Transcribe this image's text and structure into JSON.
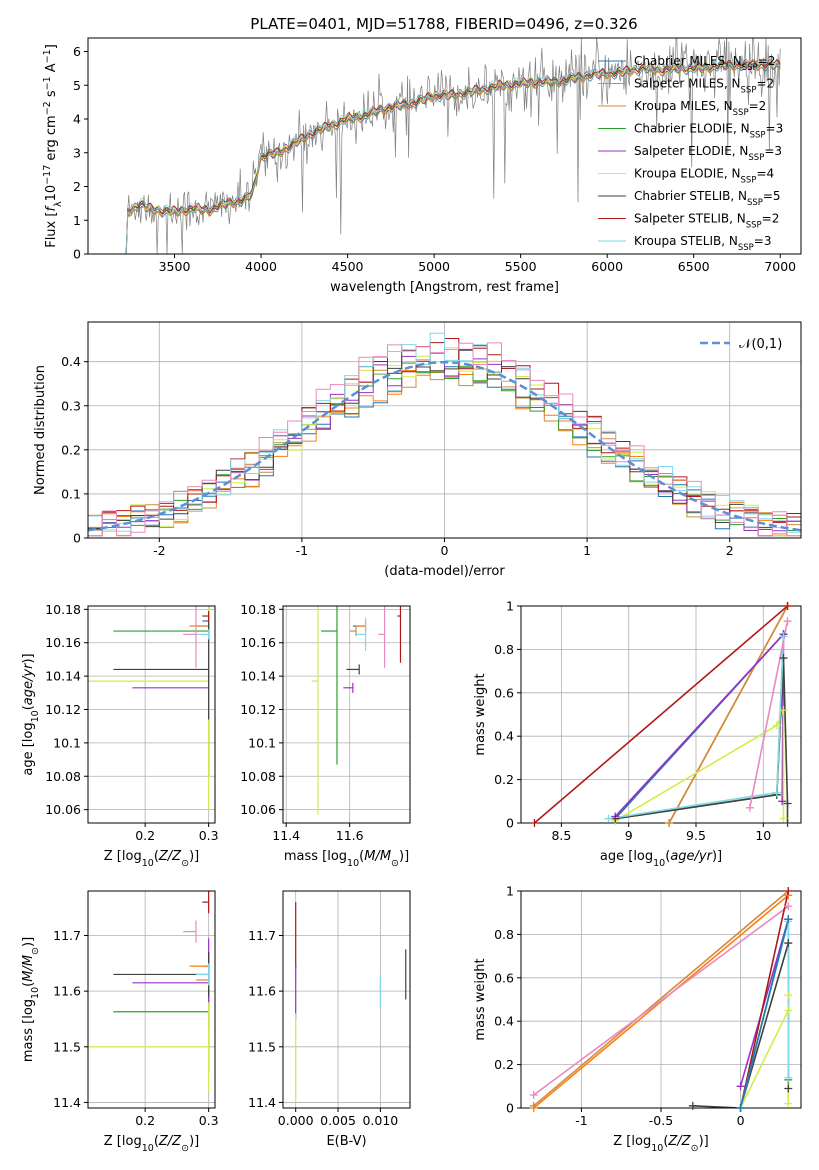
{
  "figure_title": "PLATE=0401, MJD=51788, FIBERID=0496, z=0.326",
  "series_colors": {
    "Chabrier MILES": "#1f77b4",
    "Salpeter MILES": "#ff7f0e",
    "Kroupa MILES": "#d08a3e",
    "Chabrier ELODIE": "#2ca02c",
    "Salpeter ELODIE": "#9b30c8",
    "Kroupa ELODIE": "#d4ec4a",
    "Chabrier STELIB": "#404040",
    "Salpeter STELIB": "#b01818",
    "Kroupa STELIB": "#80d8e8",
    "data_spectrum": "#808080",
    "normal_curve": "#5b8fd6",
    "hist_extra": "#e88ac0"
  },
  "chart_data": [
    {
      "id": "spectrum",
      "type": "line",
      "xlabel": "wavelength [Angstrom, rest frame]",
      "ylabel": "Flux [f_λ 10^-17 erg cm^-2 s^-1 A^-1]",
      "xlim": [
        3000,
        7120
      ],
      "ylim": [
        0,
        6.4
      ],
      "xticks": [
        3500,
        4000,
        4500,
        5000,
        5500,
        6000,
        6500,
        7000
      ],
      "yticks": [
        0,
        1,
        2,
        3,
        4,
        5,
        6
      ],
      "grid": false,
      "legend_position": "top-right",
      "legend": [
        {
          "base": "Chabrier MILES, N",
          "sub": "SSP",
          "val": "=2"
        },
        {
          "base": "Salpeter MILES, N",
          "sub": "SSP",
          "val": "=2"
        },
        {
          "base": "Kroupa MILES, N",
          "sub": "SSP",
          "val": "=2"
        },
        {
          "base": "Chabrier ELODIE, N",
          "sub": "SSP",
          "val": "=3"
        },
        {
          "base": "Salpeter ELODIE, N",
          "sub": "SSP",
          "val": "=3"
        },
        {
          "base": "Kroupa ELODIE, N",
          "sub": "SSP",
          "val": "=4"
        },
        {
          "base": "Chabrier STELIB, N",
          "sub": "SSP",
          "val": "=5"
        },
        {
          "base": "Salpeter STELIB, N",
          "sub": "SSP",
          "val": "=2"
        },
        {
          "base": "Kroupa STELIB, N",
          "sub": "SSP",
          "val": "=3"
        }
      ],
      "model_continuum": {
        "x": [
          3210,
          3225,
          3300,
          3350,
          3400,
          3500,
          3600,
          3700,
          3800,
          3900,
          3950,
          4000,
          4100,
          4200,
          4300,
          4400,
          4500,
          4600,
          4700,
          4800,
          4900,
          5000,
          5100,
          5200,
          5300,
          5400,
          5500,
          5600,
          5700,
          5800,
          5900,
          6000,
          6100,
          6200,
          6300,
          6400,
          6500,
          6600,
          6700,
          6800,
          6900,
          7000
        ],
        "y": [
          0.0,
          1.2,
          1.5,
          1.35,
          1.3,
          1.25,
          1.35,
          1.3,
          1.5,
          1.6,
          1.8,
          2.9,
          3.0,
          3.3,
          3.6,
          3.8,
          4.0,
          4.1,
          4.3,
          4.4,
          4.5,
          4.7,
          4.7,
          4.8,
          4.9,
          5.0,
          5.05,
          5.1,
          5.1,
          5.2,
          5.3,
          5.35,
          5.4,
          5.5,
          5.45,
          5.5,
          5.5,
          5.55,
          5.6,
          5.6,
          5.6,
          5.6
        ]
      },
      "data_spectrum": {
        "x_range": [
          3210,
          7000
        ],
        "noise_sigma": 0.45,
        "points": 600
      }
    },
    {
      "id": "residuals",
      "type": "bar",
      "xlabel": "(data-model)/error",
      "ylabel": "Normed distribution",
      "xlim": [
        -2.5,
        2.5
      ],
      "ylim": [
        0,
        0.49
      ],
      "xticks": [
        -2,
        -1,
        0,
        1,
        2
      ],
      "yticks": [
        0.0,
        0.1,
        0.2,
        0.3,
        0.4
      ],
      "grid": true,
      "legend_position": "top-right",
      "legend": [
        "𝒩(0,1)"
      ],
      "bin_width": 0.1,
      "reference_curve": "normal(0,1)"
    },
    {
      "id": "age-vs-Z",
      "type": "scatter",
      "xlabel": "Z [log10(Z/Z⊙)]",
      "ylabel": "age  [log10(age/yr)]",
      "xlim": [
        0.11,
        0.31
      ],
      "ylim": [
        10.052,
        10.182
      ],
      "xticks": [
        0.2,
        0.3
      ],
      "yticks": [
        10.06,
        10.08,
        10.1,
        10.12,
        10.14,
        10.16,
        10.18
      ],
      "grid": true,
      "points": [
        {
          "series": "Chabrier MILES",
          "x": 0.3,
          "y": 10.173,
          "xerr": 0.01,
          "yerr": 0.003
        },
        {
          "series": "Salpeter MILES",
          "x": 0.3,
          "y": 10.17,
          "xerr": 0.03,
          "yerr": 0.003
        },
        {
          "series": "Kroupa MILES",
          "x": 0.3,
          "y": 10.17,
          "xerr": 0.02,
          "yerr": 0.003
        },
        {
          "series": "Chabrier ELODIE",
          "x": 0.3,
          "y": 10.167,
          "xerr": 0.15,
          "yerr": 0.003
        },
        {
          "series": "Salpeter ELODIE",
          "x": 0.3,
          "y": 10.133,
          "xerr": 0.12,
          "yerr": 0.053
        },
        {
          "series": "Kroupa ELODIE",
          "x": 0.3,
          "y": 10.137,
          "xerr": 0.19,
          "yerr": 0.077
        },
        {
          "series": "Chabrier STELIB",
          "x": 0.3,
          "y": 10.144,
          "xerr": 0.15,
          "yerr": 0.03
        },
        {
          "series": "Salpeter STELIB",
          "x": 0.3,
          "y": 10.176,
          "xerr": 0.01,
          "yerr": 0.003
        },
        {
          "series": "Kroupa STELIB",
          "x": 0.3,
          "y": 10.165,
          "xerr": 0.02,
          "yerr": 0.003
        },
        {
          "series": "extra",
          "x": 0.28,
          "y": 10.165,
          "xerr": 0.02,
          "yerr": 0.02
        }
      ]
    },
    {
      "id": "age-vs-mass",
      "type": "scatter",
      "xlabel": "mass [log10(M/M⊙)]",
      "ylabel": "",
      "xlim": [
        11.39,
        11.79
      ],
      "ylim": [
        10.052,
        10.182
      ],
      "xticks": [
        11.4,
        11.6
      ],
      "yticks": [
        10.06,
        10.08,
        10.1,
        10.12,
        10.14,
        10.16,
        10.18
      ],
      "grid": true,
      "points": [
        {
          "series": "Chabrier MILES",
          "x": 11.65,
          "y": 10.17,
          "xerr": 0.04,
          "yerr": 0.003
        },
        {
          "series": "Salpeter MILES",
          "x": 11.65,
          "y": 10.17,
          "xerr": 0.03,
          "yerr": 0.003
        },
        {
          "series": "Kroupa MILES",
          "x": 11.62,
          "y": 10.167,
          "xerr": 0.02,
          "yerr": 0.003
        },
        {
          "series": "Chabrier ELODIE",
          "x": 11.56,
          "y": 10.167,
          "xerr": 0.05,
          "yerr": 0.08
        },
        {
          "series": "Salpeter ELODIE",
          "x": 11.61,
          "y": 10.133,
          "xerr": 0.03,
          "yerr": 0.003
        },
        {
          "series": "Kroupa ELODIE",
          "x": 11.5,
          "y": 10.137,
          "xerr": 0.02,
          "yerr": 0.08
        },
        {
          "series": "Chabrier STELIB",
          "x": 11.63,
          "y": 10.144,
          "xerr": 0.04,
          "yerr": 0.003
        },
        {
          "series": "Salpeter STELIB",
          "x": 11.76,
          "y": 10.176,
          "xerr": 0.01,
          "yerr": 0.028
        },
        {
          "series": "Kroupa STELIB",
          "x": 11.65,
          "y": 10.165,
          "xerr": 0.03,
          "yerr": 0.01
        },
        {
          "series": "extra",
          "x": 11.71,
          "y": 10.165,
          "xerr": 0.02,
          "yerr": 0.02
        }
      ]
    },
    {
      "id": "massweight-vs-age",
      "type": "line",
      "xlabel": "age  [log10(age/yr)]",
      "ylabel": "mass weight",
      "xlim": [
        8.2,
        10.28
      ],
      "ylim": [
        0,
        1.0
      ],
      "xticks": [
        8.5,
        9.0,
        9.5,
        10.0
      ],
      "yticks": [
        0.0,
        0.2,
        0.4,
        0.6,
        0.8,
        1.0
      ],
      "grid": true,
      "series": [
        {
          "name": "Chabrier MILES",
          "x": [
            8.9,
            10.15
          ],
          "y": [
            0.02,
            0.87
          ]
        },
        {
          "name": "Salpeter MILES",
          "x": [
            9.3,
            10.18
          ],
          "y": [
            0.0,
            1.0
          ]
        },
        {
          "name": "Kroupa MILES",
          "x": [
            9.3,
            10.18
          ],
          "y": [
            0.0,
            1.0
          ]
        },
        {
          "name": "Chabrier ELODIE",
          "x": [
            8.9,
            10.1,
            10.15
          ],
          "y": [
            0.02,
            0.13,
            0.87
          ]
        },
        {
          "name": "Salpeter ELODIE",
          "x": [
            8.9,
            10.15,
            10.14
          ],
          "y": [
            0.03,
            0.87,
            0.1
          ]
        },
        {
          "name": "Kroupa ELODIE",
          "x": [
            8.9,
            10.1,
            10.15,
            10.15
          ],
          "y": [
            0.01,
            0.45,
            0.52,
            0.02
          ]
        },
        {
          "name": "Chabrier STELIB",
          "x": [
            8.9,
            10.1,
            10.15,
            10.18,
            10.18
          ],
          "y": [
            0.02,
            0.13,
            0.76,
            0.09,
            0.0
          ]
        },
        {
          "name": "Salpeter STELIB",
          "x": [
            8.3,
            10.18
          ],
          "y": [
            0.0,
            1.0
          ]
        },
        {
          "name": "Kroupa STELIB",
          "x": [
            8.85,
            10.1,
            10.15
          ],
          "y": [
            0.02,
            0.14,
            0.86
          ]
        },
        {
          "name": "extra",
          "x": [
            9.9,
            10.18
          ],
          "y": [
            0.07,
            0.93
          ]
        }
      ]
    },
    {
      "id": "mass-vs-Z",
      "type": "scatter",
      "xlabel": "Z [log10(Z/Z⊙)]",
      "ylabel": "mass [log10(M/M⊙)]",
      "xlim": [
        0.11,
        0.31
      ],
      "ylim": [
        11.39,
        11.78
      ],
      "xticks": [
        0.2,
        0.3
      ],
      "yticks": [
        11.4,
        11.5,
        11.6,
        11.7
      ],
      "grid": true,
      "points": [
        {
          "series": "Chabrier MILES",
          "x": 0.3,
          "y": 11.645,
          "xerr": 0.01,
          "yerr": 0.01
        },
        {
          "series": "Salpeter MILES",
          "x": 0.3,
          "y": 11.645,
          "xerr": 0.03,
          "yerr": 0.01
        },
        {
          "series": "Kroupa MILES",
          "x": 0.3,
          "y": 11.62,
          "xerr": 0.02,
          "yerr": 0.01
        },
        {
          "series": "Chabrier ELODIE",
          "x": 0.3,
          "y": 11.563,
          "xerr": 0.15,
          "yerr": 0.108
        },
        {
          "series": "Salpeter ELODIE",
          "x": 0.3,
          "y": 11.615,
          "xerr": 0.12,
          "yerr": 0.08
        },
        {
          "series": "Kroupa ELODIE",
          "x": 0.3,
          "y": 11.5,
          "xerr": 0.19,
          "yerr": 0.08
        },
        {
          "series": "Chabrier STELIB",
          "x": 0.3,
          "y": 11.63,
          "xerr": 0.15,
          "yerr": 0.04
        },
        {
          "series": "Salpeter STELIB",
          "x": 0.3,
          "y": 11.76,
          "xerr": 0.01,
          "yerr": 0.02
        },
        {
          "series": "Kroupa STELIB",
          "x": 0.3,
          "y": 11.63,
          "xerr": 0.02,
          "yerr": 0.02
        },
        {
          "series": "extra",
          "x": 0.28,
          "y": 11.707,
          "xerr": 0.02,
          "yerr": 0.02
        }
      ]
    },
    {
      "id": "mass-vs-EBV",
      "type": "scatter",
      "xlabel": "E(B-V)",
      "ylabel": "",
      "xlim": [
        -0.0015,
        0.0135
      ],
      "ylim": [
        11.39,
        11.78
      ],
      "xticks": [
        0.0,
        0.005,
        0.01
      ],
      "xtick_labels": [
        "0.000",
        "0.005",
        "0.010"
      ],
      "yticks": [
        11.4,
        11.5,
        11.6,
        11.7
      ],
      "grid": true,
      "points": [
        {
          "series": "Salpeter STELIB",
          "x": 0.0,
          "y": 11.7,
          "yerr": 0.06
        },
        {
          "series": "Salpeter ELODIE",
          "x": 0.0,
          "y": 11.6,
          "yerr": 0.05
        },
        {
          "series": "Kroupa ELODIE",
          "x": 0.0,
          "y": 11.48,
          "yerr": 0.08
        },
        {
          "series": "Kroupa STELIB",
          "x": 0.01,
          "y": 11.6,
          "yerr": 0.03
        },
        {
          "series": "Chabrier STELIB",
          "x": 0.013,
          "y": 11.63,
          "yerr": 0.045
        }
      ]
    },
    {
      "id": "massweight-vs-Z",
      "type": "line",
      "xlabel": "Z [log10(Z/Z⊙)]",
      "ylabel": "mass weight",
      "xlim": [
        -1.38,
        0.38
      ],
      "ylim": [
        0,
        1.0
      ],
      "xticks": [
        -1.0,
        -0.5,
        0.0
      ],
      "yticks": [
        0.0,
        0.2,
        0.4,
        0.6,
        0.8,
        1.0
      ],
      "grid": true,
      "series": [
        {
          "name": "Salpeter MILES",
          "x": [
            -1.3,
            0.3
          ],
          "y": [
            0.0,
            0.98
          ]
        },
        {
          "name": "Kroupa MILES",
          "x": [
            -1.3,
            0.3
          ],
          "y": [
            0.01,
            1.0
          ]
        },
        {
          "name": "extra",
          "x": [
            -1.3,
            0.3
          ],
          "y": [
            0.06,
            0.93
          ]
        },
        {
          "name": "Salpeter ELODIE",
          "x": [
            0.0,
            0.3
          ],
          "y": [
            0.1,
            0.87
          ]
        },
        {
          "name": "Salpeter STELIB",
          "x": [
            0.0,
            0.3
          ],
          "y": [
            0.0,
            1.0
          ]
        },
        {
          "name": "Chabrier STELIB",
          "x": [
            -0.3,
            0.0,
            0.3,
            0.3
          ],
          "y": [
            0.01,
            0.0,
            0.76,
            0.09
          ]
        },
        {
          "name": "Chabrier ELODIE",
          "x": [
            0.0,
            0.3,
            0.3
          ],
          "y": [
            0.0,
            0.87,
            0.13
          ]
        },
        {
          "name": "Kroupa ELODIE",
          "x": [
            0.0,
            0.3,
            0.3,
            0.3
          ],
          "y": [
            0.0,
            0.45,
            0.52,
            0.02
          ]
        },
        {
          "name": "Kroupa STELIB",
          "x": [
            0.0,
            0.3,
            0.3
          ],
          "y": [
            0.0,
            0.86,
            0.14
          ]
        },
        {
          "name": "Chabrier MILES",
          "x": [
            0.0,
            0.3
          ],
          "y": [
            0.0,
            0.87
          ]
        }
      ]
    }
  ]
}
